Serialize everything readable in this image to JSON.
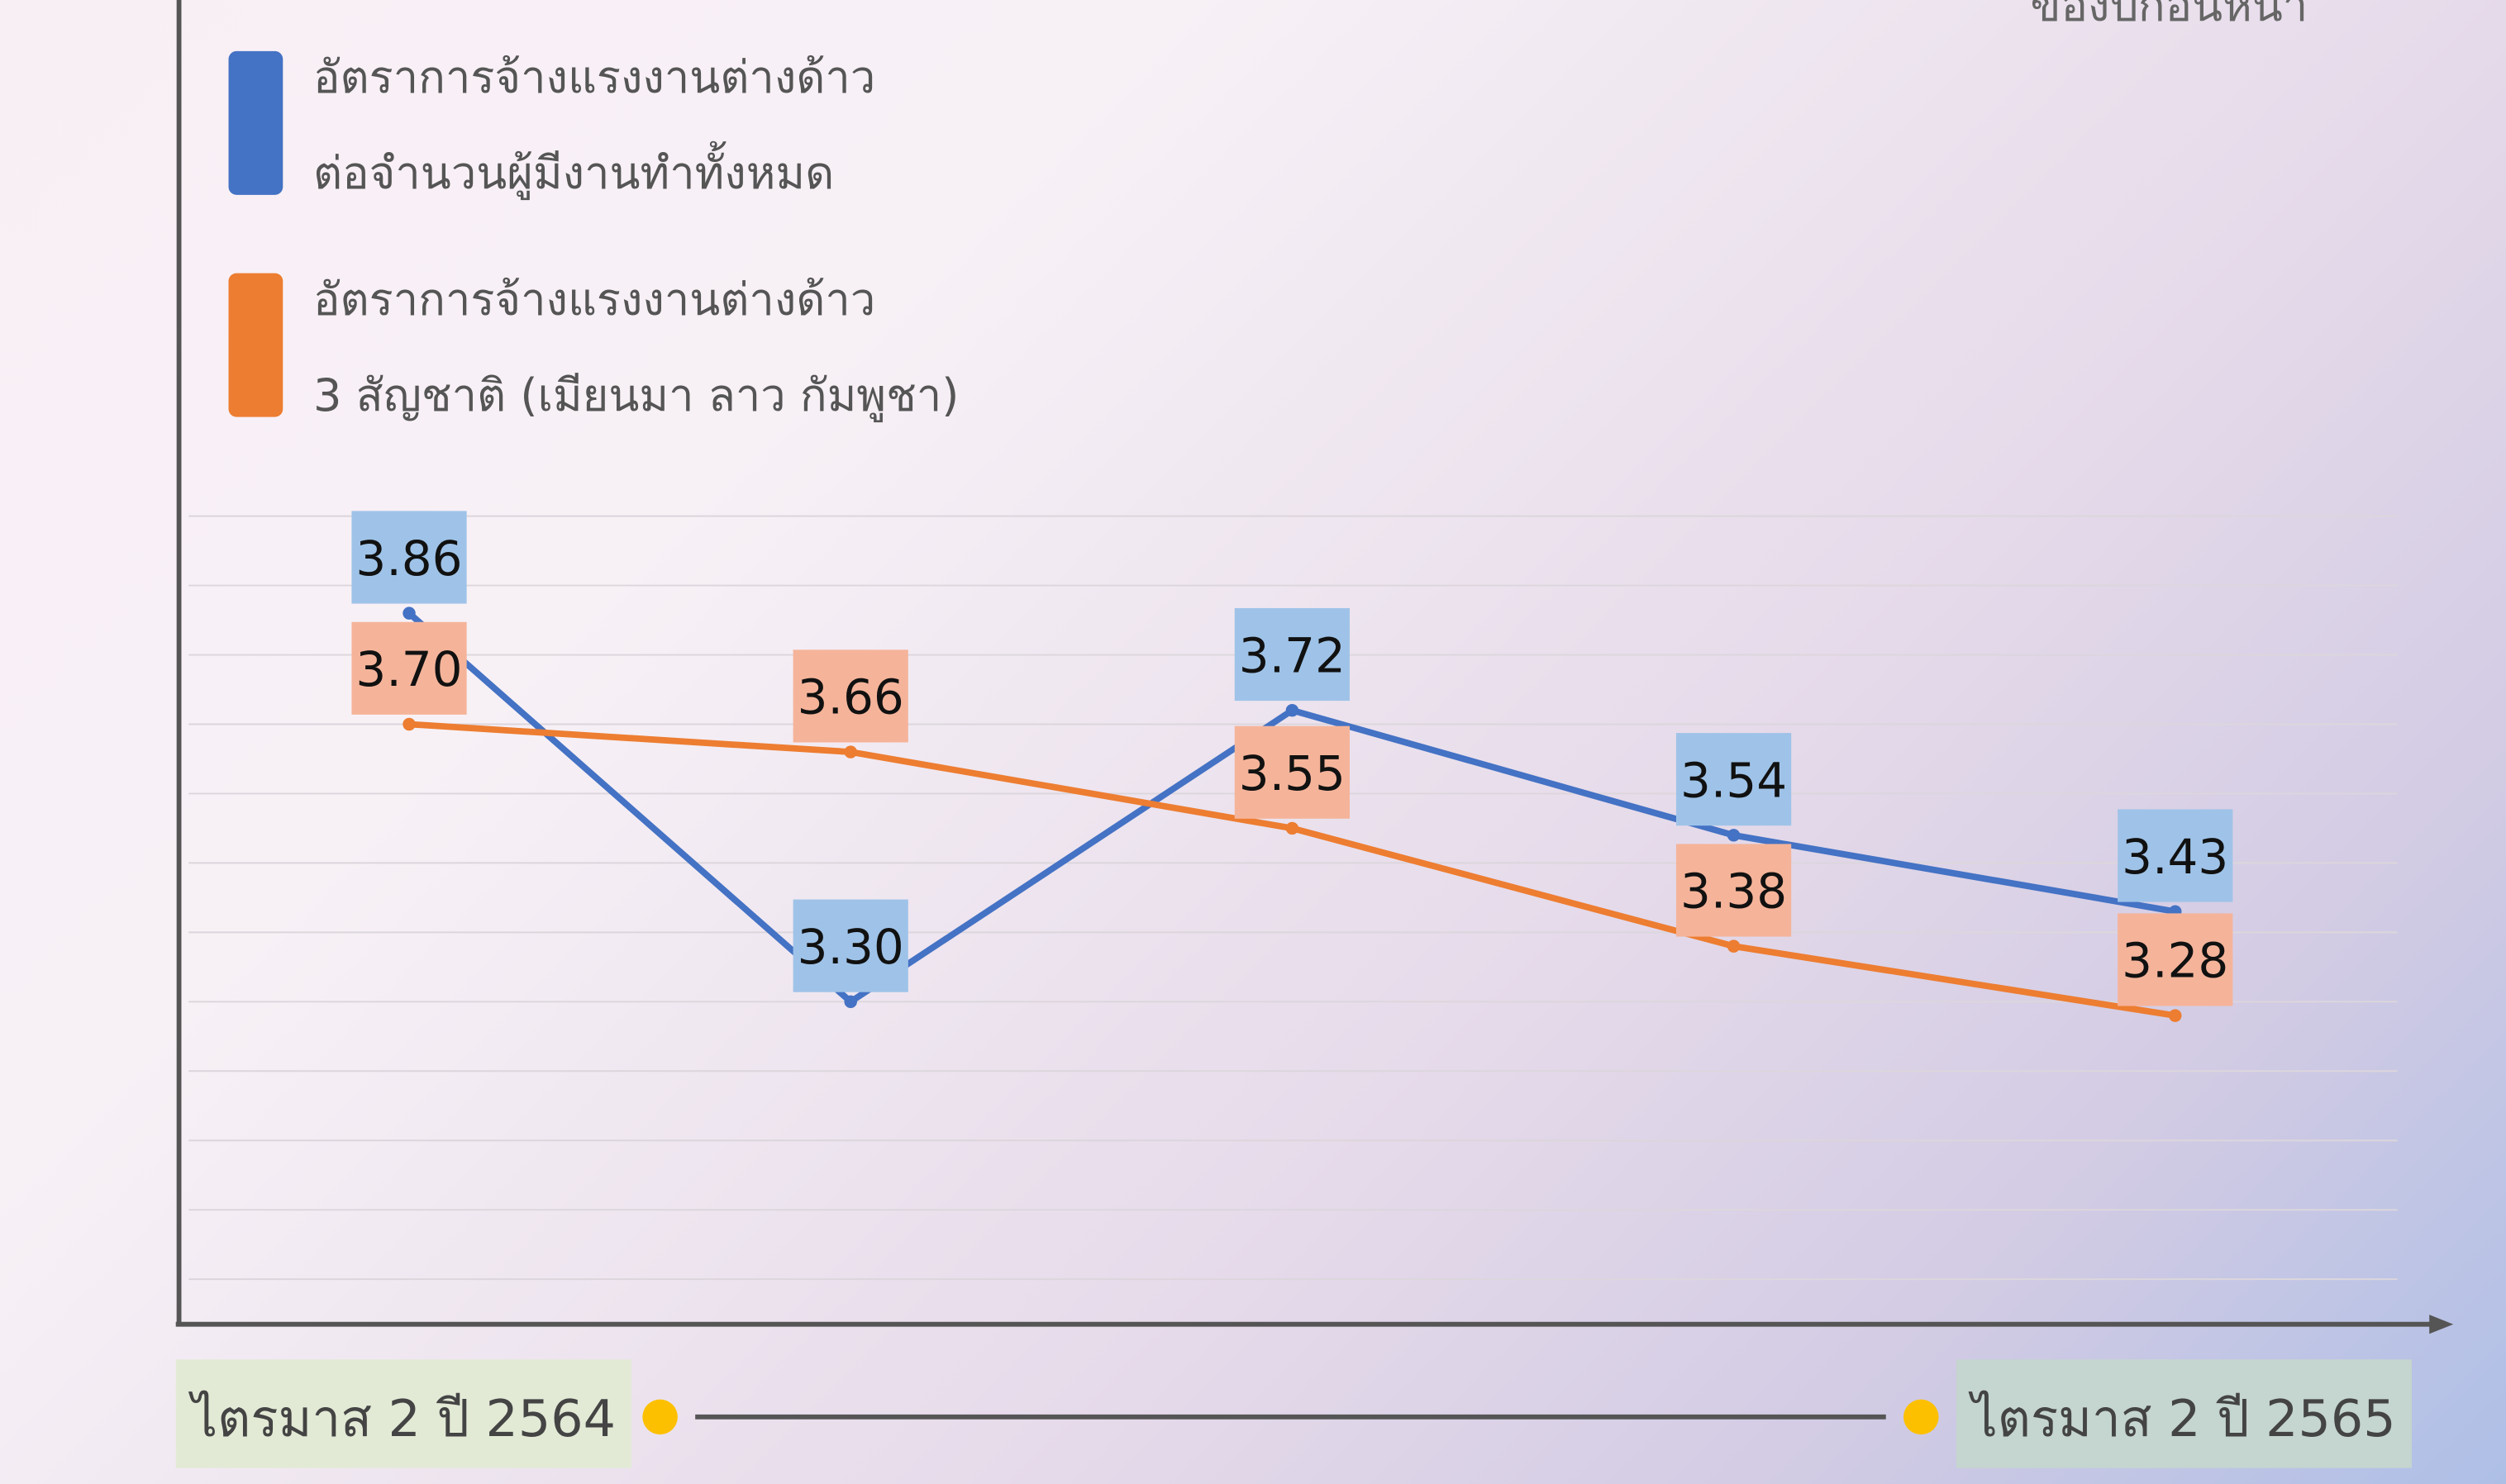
{
  "chart_data": {
    "type": "line",
    "note": "ของปีก่อนหน้า",
    "categories": [
      null,
      null,
      null,
      null,
      null
    ],
    "series": [
      {
        "name": "อัตราการจ้างแรงงานต่างด้าว\nต่อจำนวนผู้มีงานทำทั้งหมด",
        "color": "#4472c4",
        "label_color": "#9fc3e8",
        "values": [
          3.86,
          3.3,
          3.72,
          3.54,
          3.43
        ],
        "value_labels": [
          "3.86",
          "3.30",
          "3.72",
          "3.54",
          "3.43"
        ]
      },
      {
        "name": "อัตราการจ้างแรงงานต่างด้าว\n3 สัญชาติ (เมียนมา ลาว กัมพูชา)",
        "color": "#ed7d31",
        "label_color": "#f5b49a",
        "values": [
          3.7,
          3.66,
          3.55,
          3.38,
          3.28
        ],
        "value_labels": [
          "3.70",
          "3.66",
          "3.55",
          "3.38",
          "3.28"
        ]
      }
    ],
    "ylim": [
      2.835,
      4.744
    ],
    "yticks": [
      2.9,
      3.0,
      3.1,
      3.2,
      3.3,
      3.4,
      3.5,
      3.6,
      3.7,
      3.8,
      3.9,
      4.0
    ],
    "grid": true,
    "timeline": {
      "start": "ไตรมาส 2 ปี 2564",
      "end": "ไตรมาส 2 ปี 2565"
    }
  }
}
